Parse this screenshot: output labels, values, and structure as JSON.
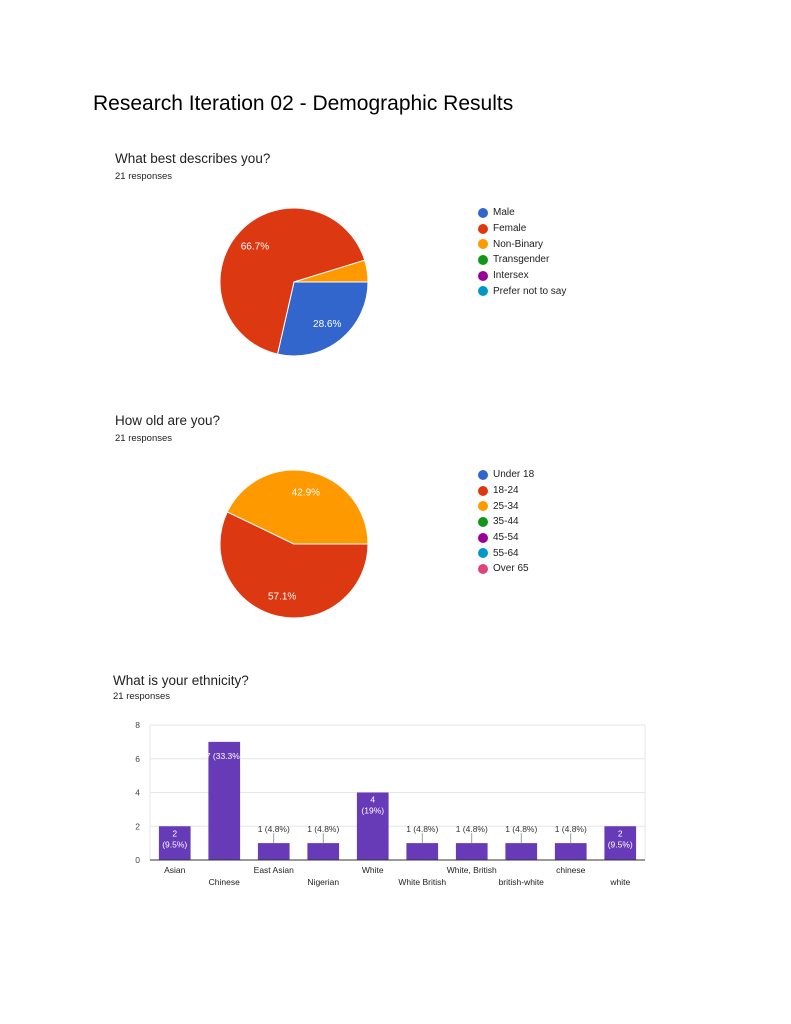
{
  "page": {
    "title": "Research Iteration 02 - Demographic Results"
  },
  "colors": {
    "blue": "#3366cc",
    "red": "#dc3912",
    "orange": "#ff9900",
    "green": "#109618",
    "purple": "#990099",
    "teal": "#0099c6",
    "pink": "#dd4477",
    "bar": "#673ab7"
  },
  "questions": [
    {
      "title": "What best describes you?",
      "responses": "21 responses",
      "legend": [
        {
          "label": "Male",
          "color": "#3366cc"
        },
        {
          "label": "Female",
          "color": "#dc3912"
        },
        {
          "label": "Non-Binary",
          "color": "#ff9900"
        },
        {
          "label": "Transgender",
          "color": "#109618"
        },
        {
          "label": "Intersex",
          "color": "#990099"
        },
        {
          "label": "Prefer not to say",
          "color": "#0099c6"
        }
      ]
    },
    {
      "title": "How old are you?",
      "responses": "21 responses",
      "legend": [
        {
          "label": "Under 18",
          "color": "#3366cc"
        },
        {
          "label": "18-24",
          "color": "#dc3912"
        },
        {
          "label": "25-34",
          "color": "#ff9900"
        },
        {
          "label": "35-44",
          "color": "#109618"
        },
        {
          "label": "45-54",
          "color": "#990099"
        },
        {
          "label": "55-64",
          "color": "#0099c6"
        },
        {
          "label": "Over 65",
          "color": "#dd4477"
        }
      ]
    },
    {
      "title": "What is your ethnicity?",
      "responses": "21 responses"
    }
  ],
  "chart_data": [
    {
      "type": "pie",
      "categories": [
        "Male",
        "Female",
        "Non-Binary",
        "Transgender",
        "Intersex",
        "Prefer not to say"
      ],
      "values": [
        6,
        14,
        1,
        0,
        0,
        0
      ],
      "data_labels": [
        "28.6%",
        "66.7%",
        "",
        "",
        "",
        ""
      ],
      "colors": [
        "#3366cc",
        "#dc3912",
        "#ff9900",
        "#109618",
        "#990099",
        "#0099c6"
      ],
      "legend_position": "right"
    },
    {
      "type": "pie",
      "categories": [
        "Under 18",
        "18-24",
        "25-34",
        "35-44",
        "45-54",
        "55-64",
        "Over 65"
      ],
      "values": [
        0,
        12,
        9,
        0,
        0,
        0,
        0
      ],
      "data_labels": [
        "",
        "57.1%",
        "42.9%",
        "",
        "",
        "",
        ""
      ],
      "colors": [
        "#3366cc",
        "#dc3912",
        "#ff9900",
        "#109618",
        "#990099",
        "#0099c6",
        "#dd4477"
      ],
      "legend_position": "right"
    },
    {
      "type": "bar",
      "categories": [
        "Asian",
        "Chinese",
        "East Asian",
        "Nigerian",
        "White",
        "White British",
        "White, British",
        "british-white",
        "chinese",
        "white"
      ],
      "values": [
        2,
        7,
        1,
        1,
        4,
        1,
        1,
        1,
        1,
        2
      ],
      "data_labels": [
        "2 (9.5%)",
        "7 (33.3%)",
        "1 (4.8%)",
        "1 (4.8%)",
        "4 (19%)",
        "1 (4.8%)",
        "1 (4.8%)",
        "1 (4.8%)",
        "1 (4.8%)",
        "2 (9.5%)"
      ],
      "yticks": [
        0,
        2,
        4,
        6,
        8
      ],
      "ylim": [
        0,
        8
      ],
      "grid": true,
      "color": "#673ab7"
    }
  ]
}
